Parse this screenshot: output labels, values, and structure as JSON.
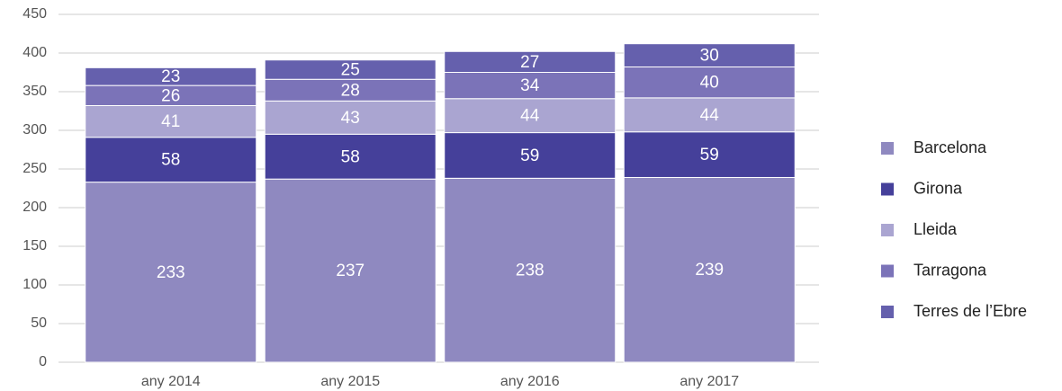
{
  "chart_data": {
    "type": "stacked_bar",
    "categories": [
      "any 2014",
      "any 2015",
      "any 2016",
      "any 2017"
    ],
    "series": [
      {
        "name": "Barcelona",
        "color": "#8f89c0",
        "values": [
          233,
          237,
          238,
          239
        ]
      },
      {
        "name": "Girona",
        "color": "#45409a",
        "values": [
          58,
          58,
          59,
          59
        ]
      },
      {
        "name": "Lleida",
        "color": "#aaa5d1",
        "values": [
          41,
          43,
          44,
          44
        ]
      },
      {
        "name": "Tarragona",
        "color": "#7b73b8",
        "values": [
          26,
          28,
          34,
          40
        ]
      },
      {
        "name": "Terres de l’Ebre",
        "color": "#6560ad",
        "values": [
          23,
          25,
          27,
          30
        ]
      }
    ],
    "ylim": [
      0,
      450
    ],
    "yticks": [
      0,
      50,
      100,
      150,
      200,
      250,
      300,
      350,
      400,
      450
    ],
    "grid": true,
    "legend": "right"
  }
}
